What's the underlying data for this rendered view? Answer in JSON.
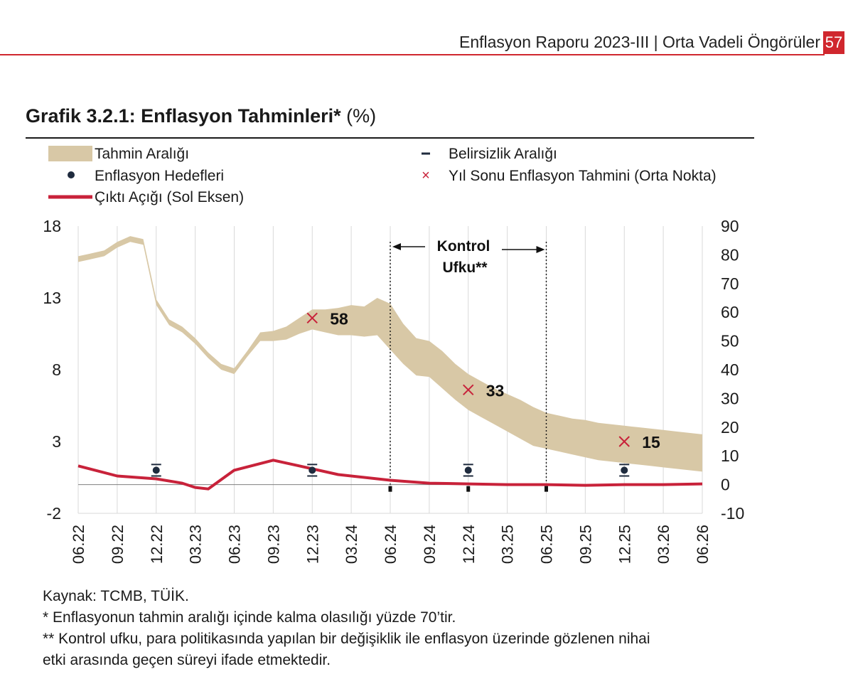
{
  "header": {
    "title": "Enflasyon Raporu 2023-III | Orta Vadeli Öngörüler",
    "page_number": "57",
    "accent_color": "#d0272e"
  },
  "chart_title": {
    "bold": "Grafik 3.2.1: Enflasyon Tahminleri*",
    "unit": "(%)"
  },
  "legend": {
    "band": "Tahmin Aralığı",
    "targets": "Enflasyon Hedefleri",
    "output_gap": "Çıktı Açığı (Sol Eksen)",
    "uncertainty": "Belirsizlik Aralığı",
    "year_end": "Yıl Sonu Enflasyon Tahmini (Orta Nokta)"
  },
  "annotation": {
    "line1": "Kontrol",
    "line2": "Ufku**"
  },
  "footer": {
    "source": "Kaynak: TCMB, TÜİK.",
    "note1": "* Enflasyonun tahmin aralığı içinde kalma olasılığı yüzde 70’tir.",
    "note2a": "** Kontrol ufku, para politikasında yapılan bir değişiklik ile enflasyon üzerinde gözlenen nihai",
    "note2b": "etki arasında geçen süreyi ifade etmektedir."
  },
  "chart_data": {
    "type": "line",
    "x_ticks": [
      "06.22",
      "09.22",
      "12.22",
      "03.23",
      "06.23",
      "09.23",
      "12.23",
      "03.24",
      "06.24",
      "09.24",
      "12.24",
      "03.25",
      "06.25",
      "09.25",
      "12.25",
      "03.26",
      "06.26"
    ],
    "left_axis": {
      "ticks": [
        18,
        13,
        8,
        3,
        -2
      ],
      "range": [
        -2,
        18
      ],
      "label": ""
    },
    "right_axis": {
      "ticks": [
        90,
        80,
        70,
        60,
        50,
        40,
        30,
        20,
        10,
        0,
        -10
      ],
      "range": [
        -10,
        90
      ],
      "label": ""
    },
    "grid": "vertical",
    "legend_placement": "top",
    "colors": {
      "band": "#d8c8a6",
      "output_gap": "#c8223a",
      "target": "#1f2b3e",
      "year_end": "#c8223a",
      "grid": "#d9d9d9"
    },
    "forecast_band": {
      "axis": "right",
      "x": [
        0,
        1,
        2,
        3,
        4,
        5,
        6,
        7,
        8,
        9,
        10,
        11,
        12,
        13,
        14,
        15,
        16,
        17,
        18,
        19,
        20,
        21,
        22,
        23,
        24,
        25,
        26,
        27,
        28,
        29,
        30,
        31,
        32,
        33,
        34,
        35,
        36,
        37,
        38,
        39,
        40,
        41,
        42,
        43,
        44,
        45,
        46,
        47,
        48
      ],
      "upper": [
        79.5,
        80.5,
        81.5,
        84.5,
        86.5,
        85.5,
        64.5,
        57.5,
        55,
        51,
        46,
        42,
        40.5,
        46.5,
        53,
        53.5,
        55,
        58,
        61,
        61,
        61.5,
        62.5,
        62,
        65,
        63,
        56,
        51,
        50,
        46.5,
        42,
        38.5,
        36,
        33.5,
        31.5,
        29.5,
        27,
        25,
        24,
        23,
        22.5,
        21.5,
        21,
        20.5,
        20,
        19.5,
        19,
        18.5,
        18,
        17.5
      ],
      "lower": [
        77.5,
        78.5,
        79.5,
        82.5,
        84.5,
        83.5,
        62.5,
        55.5,
        53,
        49,
        44,
        40,
        38.5,
        44.5,
        50,
        50,
        50.5,
        52.5,
        54,
        53,
        52,
        52,
        51.5,
        52,
        47,
        42,
        38,
        37.5,
        33.5,
        29.5,
        26,
        23.5,
        21,
        18.5,
        16,
        13.5,
        12.5,
        11.5,
        10.5,
        9.5,
        8.5,
        8,
        7.5,
        7,
        6.5,
        6,
        5.5,
        5,
        4.5
      ]
    },
    "output_gap": {
      "axis": "left",
      "name": "Çıktı Açığı (Sol Eksen)",
      "x": [
        0,
        3,
        6,
        8,
        9,
        10,
        12,
        15,
        17,
        20,
        24,
        27,
        30,
        33,
        36,
        39,
        42,
        45,
        48
      ],
      "y": [
        1.3,
        0.6,
        0.4,
        0.1,
        -0.2,
        -0.3,
        1,
        1.7,
        1.3,
        0.7,
        0.3,
        0.1,
        0.05,
        0,
        0,
        -0.05,
        0,
        0,
        0.05
      ]
    },
    "inflation_targets": [
      {
        "x_tick": "12.22",
        "value": 5,
        "range": [
          3,
          7
        ]
      },
      {
        "x_tick": "12.23",
        "value": 5,
        "range": [
          3,
          7
        ]
      },
      {
        "x_tick": "12.24",
        "value": 5,
        "range": [
          3,
          7
        ]
      },
      {
        "x_tick": "12.25",
        "value": 5,
        "range": [
          3,
          7
        ]
      }
    ],
    "uncertainty_marks": [
      {
        "x_tick": "06.24",
        "value": -1.5
      },
      {
        "x_tick": "12.24",
        "value": -1.5
      },
      {
        "x_tick": "06.25",
        "value": -1.5
      }
    ],
    "year_end_forecasts": [
      {
        "x_tick": "12.23",
        "value": 58,
        "label": "58"
      },
      {
        "x_tick": "12.24",
        "value": 33,
        "label": "33"
      },
      {
        "x_tick": "12.25",
        "value": 15,
        "label": "15"
      }
    ],
    "control_horizon": {
      "from": "06.24",
      "to": "06.25"
    }
  }
}
